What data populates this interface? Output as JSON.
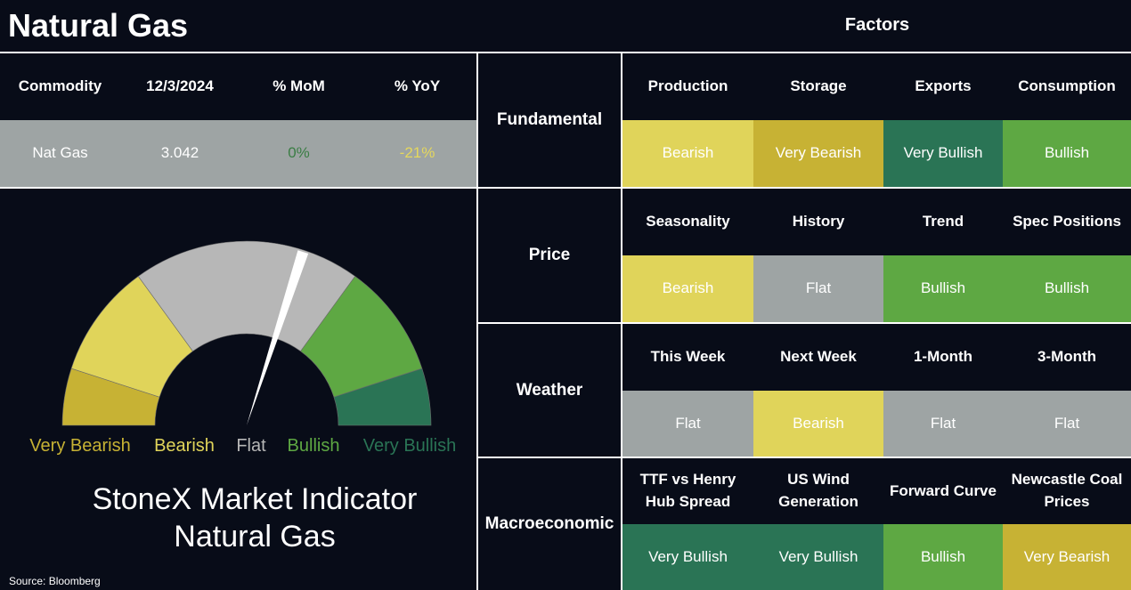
{
  "header": {
    "title": "Natural Gas",
    "factors_title": "Factors"
  },
  "commodity_table": {
    "columns": [
      "Commodity",
      "12/3/2024",
      "% MoM",
      "% YoY"
    ],
    "row": [
      "Nat Gas",
      "3.042",
      "0%",
      "-21%"
    ],
    "row_colors": [
      "#ffffff",
      "#ffffff",
      "#3a7d44",
      "#e6d85c"
    ]
  },
  "gauge": {
    "range": [
      0,
      100
    ],
    "needle": 60,
    "bands": [
      {
        "label": "Very Bearish",
        "from": 0,
        "to": 10,
        "color": "#c7b234"
      },
      {
        "label": "Bearish",
        "from": 10,
        "to": 30,
        "color": "#e0d45a"
      },
      {
        "label": "Flat",
        "from": 30,
        "to": 70,
        "color": "#b7b7b7"
      },
      {
        "label": "Bullish",
        "from": 70,
        "to": 90,
        "color": "#5ea843"
      },
      {
        "label": "Very Bullish",
        "from": 90,
        "to": 100,
        "color": "#2a7455"
      }
    ],
    "title": [
      "StoneX Market Indicator",
      "Natural Gas"
    ]
  },
  "source": "Source: Bloomberg",
  "signal_colors": {
    "Very Bearish": "#c7b234",
    "Bearish": "#e0d45a",
    "Flat": "#9ea4a4",
    "Bullish": "#5ea843",
    "Very Bullish": "#2a7455"
  },
  "factors": [
    {
      "group": "Fundamental",
      "items": [
        {
          "name": "Production",
          "signal": "Bearish"
        },
        {
          "name": "Storage",
          "signal": "Very Bearish"
        },
        {
          "name": "Exports",
          "signal": "Very Bullish"
        },
        {
          "name": "Consumption",
          "signal": "Bullish"
        }
      ]
    },
    {
      "group": "Price",
      "items": [
        {
          "name": "Seasonality",
          "signal": "Bearish"
        },
        {
          "name": "History",
          "signal": "Flat"
        },
        {
          "name": "Trend",
          "signal": "Bullish"
        },
        {
          "name": "Spec Positions",
          "signal": "Bullish"
        }
      ]
    },
    {
      "group": "Weather",
      "items": [
        {
          "name": "This Week",
          "signal": "Flat"
        },
        {
          "name": "Next Week",
          "signal": "Bearish"
        },
        {
          "name": "1-Month",
          "signal": "Flat"
        },
        {
          "name": "3-Month",
          "signal": "Flat"
        }
      ]
    },
    {
      "group": "Macroeconomic",
      "items": [
        {
          "name": "TTF vs Henry Hub Spread",
          "signal": "Very Bullish"
        },
        {
          "name": "US Wind Generation",
          "signal": "Very Bullish"
        },
        {
          "name": "Forward Curve",
          "signal": "Bullish"
        },
        {
          "name": "Newcastle Coal Prices",
          "signal": "Very Bearish"
        }
      ]
    }
  ]
}
